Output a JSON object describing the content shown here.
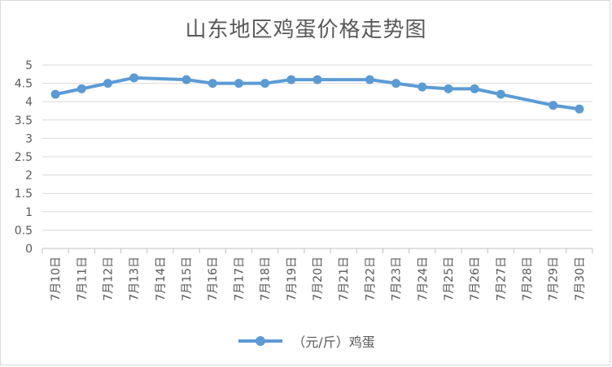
{
  "chart_data": {
    "type": "line",
    "title": "山东地区鸡蛋价格走势图",
    "categories": [
      "7月10日",
      "7月11日",
      "7月12日",
      "7月13日",
      "7月14日",
      "7月15日",
      "7月16日",
      "7月17日",
      "7月18日",
      "7月19日",
      "7月20日",
      "7月21日",
      "7月22日",
      "7月23日",
      "7月24日",
      "7月25日",
      "7月26日",
      "7月27日",
      "7月28日",
      "7月29日",
      "7月30日"
    ],
    "series": [
      {
        "name": "（元/斤）鸡蛋",
        "color": "#5b9bd5",
        "values": [
          4.2,
          4.35,
          4.5,
          4.65,
          null,
          4.6,
          4.5,
          4.5,
          4.5,
          4.6,
          4.6,
          null,
          4.6,
          4.5,
          4.4,
          4.35,
          4.35,
          4.2,
          null,
          3.9,
          3.8
        ]
      }
    ],
    "ylim": [
      0,
      5
    ],
    "yticks": [
      "0",
      "0.5",
      "1",
      "1.5",
      "2",
      "2.5",
      "3",
      "3.5",
      "4",
      "4.5",
      "5"
    ],
    "grid": true,
    "legend": "bottom"
  }
}
